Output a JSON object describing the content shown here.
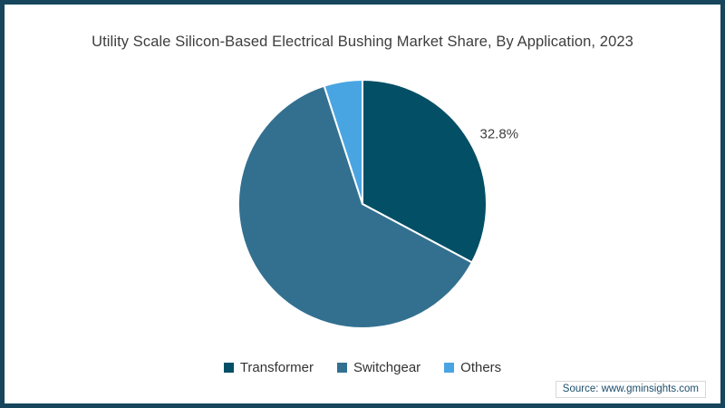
{
  "frame": {
    "border_color": "#16455c",
    "background": "#ffffff"
  },
  "chart_title": "Utility Scale Silicon-Based Electrical Bushing Market Share, By Application, 2023",
  "source_note": "Source: www.gminsights.com",
  "chart_data": {
    "type": "pie",
    "title": "Utility Scale Silicon-Based Electrical Bushing Market Share, By Application, 2023",
    "unit": "%",
    "start_angle_deg": 0,
    "direction": "clockwise",
    "legend_position": "bottom",
    "grid": false,
    "slice_separator_color": "#ffffff",
    "labeled_value_text": "32.8%",
    "slices": [
      {
        "name": "Transformer",
        "value": 32.8,
        "color": "#034f66",
        "label": "32.8%"
      },
      {
        "name": "Switchgear",
        "value": 62.2,
        "color": "#337090",
        "label": ""
      },
      {
        "name": "Others",
        "value": 5.0,
        "color": "#49a5e2",
        "label": ""
      }
    ]
  }
}
